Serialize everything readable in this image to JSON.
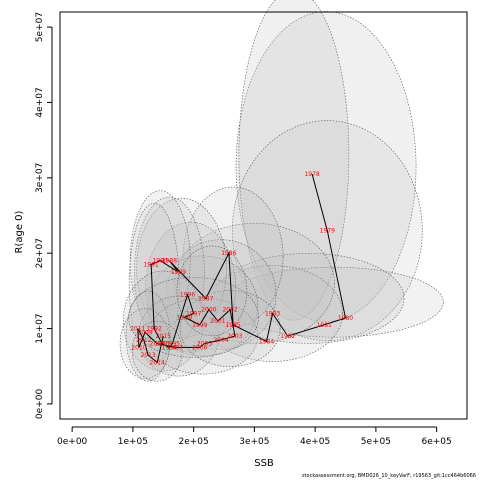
{
  "chart_data": {
    "type": "scatter",
    "title": "",
    "xlabel": "SSB",
    "ylabel": "R(age 0)",
    "xlim": [
      -20000,
      650000
    ],
    "ylim": [
      -2000000,
      52000000
    ],
    "xticks": [
      0,
      100000,
      200000,
      300000,
      400000,
      500000,
      600000
    ],
    "xtick_labels": [
      "0e+00",
      "1e+05",
      "2e+05",
      "3e+05",
      "4e+05",
      "5e+05",
      "6e+05"
    ],
    "yticks": [
      0,
      10000000,
      20000000,
      30000000,
      40000000,
      50000000
    ],
    "ytick_labels": [
      "0e+00",
      "1e+07",
      "2e+07",
      "3e+07",
      "4e+07",
      "5e+07"
    ],
    "series": [
      {
        "points": [
          {
            "label": "1978",
            "x": 395000,
            "y": 30500000
          },
          {
            "label": "1979",
            "x": 420000,
            "y": 23000000
          },
          {
            "label": "1980",
            "x": 450000,
            "y": 11400000
          },
          {
            "label": "1981",
            "x": 415000,
            "y": 10500000
          },
          {
            "label": "1982",
            "x": 355000,
            "y": 9000000
          },
          {
            "label": "1983",
            "x": 330000,
            "y": 12000000
          },
          {
            "label": "1984",
            "x": 320000,
            "y": 8300000
          },
          {
            "label": "1985",
            "x": 265000,
            "y": 10500000
          },
          {
            "label": "1986",
            "x": 258000,
            "y": 20000000
          },
          {
            "label": "1987",
            "x": 220000,
            "y": 14000000
          },
          {
            "label": "1988",
            "x": 160000,
            "y": 19000000
          },
          {
            "label": "1989",
            "x": 175000,
            "y": 17500000
          },
          {
            "label": "1990",
            "x": 145000,
            "y": 19000000
          },
          {
            "label": "1991",
            "x": 130000,
            "y": 18500000
          },
          {
            "label": "1992",
            "x": 135000,
            "y": 10000000
          },
          {
            "label": "1993",
            "x": 148000,
            "y": 8000000
          },
          {
            "label": "1994",
            "x": 160000,
            "y": 7500000
          },
          {
            "label": "1995",
            "x": 165000,
            "y": 8000000
          },
          {
            "label": "1996",
            "x": 190000,
            "y": 14500000
          },
          {
            "label": "1997",
            "x": 200000,
            "y": 12000000
          },
          {
            "label": "1998",
            "x": 185000,
            "y": 11500000
          },
          {
            "label": "1999",
            "x": 210000,
            "y": 10500000
          },
          {
            "label": "2000",
            "x": 225000,
            "y": 12500000
          },
          {
            "label": "2001",
            "x": 240000,
            "y": 11000000
          },
          {
            "label": "2002",
            "x": 260000,
            "y": 12500000
          },
          {
            "label": "2003",
            "x": 268000,
            "y": 9000000
          },
          {
            "label": "2004",
            "x": 245000,
            "y": 8500000
          },
          {
            "label": "2005",
            "x": 218000,
            "y": 8000000
          },
          {
            "label": "2006",
            "x": 210000,
            "y": 7500000
          },
          {
            "label": "2007",
            "x": 170000,
            "y": 7500000
          },
          {
            "label": "2008",
            "x": 140000,
            "y": 8000000
          },
          {
            "label": "2009",
            "x": 120000,
            "y": 9500000
          },
          {
            "label": "2010",
            "x": 110000,
            "y": 7500000
          },
          {
            "label": "2011",
            "x": 108000,
            "y": 10000000
          },
          {
            "label": "2012",
            "x": 118000,
            "y": 8500000
          },
          {
            "label": "2013",
            "x": 125000,
            "y": 6500000
          },
          {
            "label": "2014",
            "x": 140000,
            "y": 5500000
          },
          {
            "label": "2015",
            "x": 150000,
            "y": 9000000
          }
        ]
      }
    ],
    "ellipse_fill": "#bfbfbf",
    "ellipse_stroke": "#555555",
    "line_color": "#000000",
    "point_label_color": "#ff0000",
    "grid": false
  },
  "footer_text": "stockassessment.org, BMD026_10_keyVarF, r19563_git:1cc464b6066"
}
